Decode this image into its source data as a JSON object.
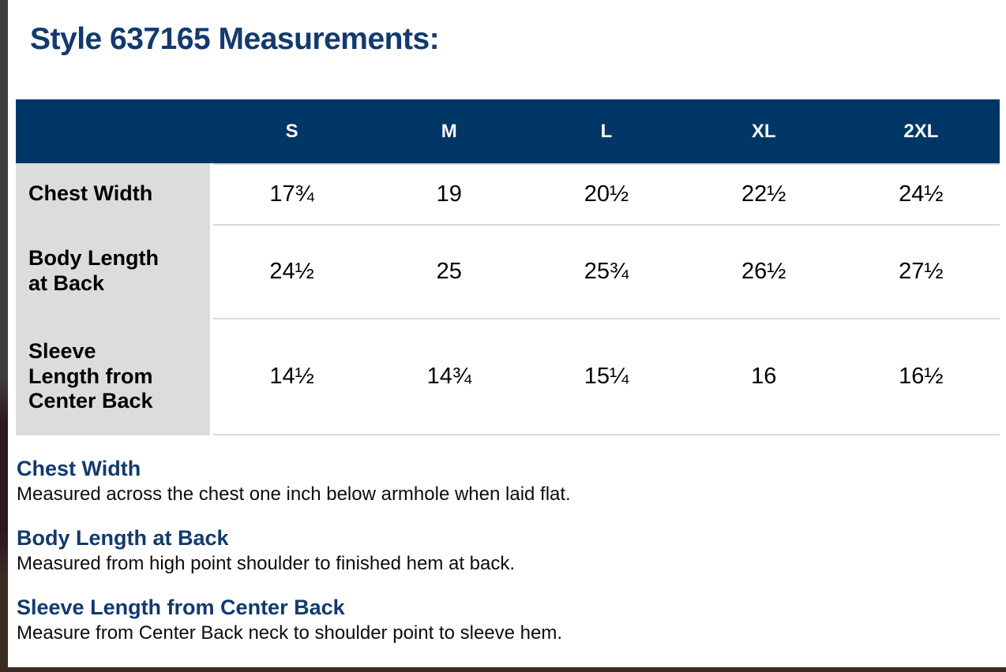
{
  "page": {
    "title": "Style 637165 Measurements:"
  },
  "table": {
    "sizes": [
      "S",
      "M",
      "L",
      "XL",
      "2XL"
    ],
    "rows": [
      {
        "label": "Chest Width",
        "values": [
          "17¾",
          "19",
          "20½",
          "22½",
          "24½"
        ]
      },
      {
        "label": "Body Length at Back",
        "values": [
          "24½",
          "25",
          "25¾",
          "26½",
          "27½"
        ]
      },
      {
        "label": "Sleeve Length from Center Back",
        "values": [
          "14½",
          "14¾",
          "15¼",
          "16",
          "16½"
        ]
      }
    ]
  },
  "definitions": [
    {
      "term": "Chest Width",
      "description": "Measured across the chest one inch below armhole when laid flat."
    },
    {
      "term": "Body Length at Back",
      "description": "Measured from high point shoulder to finished hem at back."
    },
    {
      "term": "Sleeve Length from Center Back",
      "description": "Measure from Center Back neck to shoulder point to sleeve hem."
    }
  ],
  "colors": {
    "header_bg": "#003666",
    "title_text": "#123a6d",
    "label_bg": "#dcdcdc",
    "row_divider": "#d9d9d9",
    "edge_top": "#3f3f42",
    "edge_mid": "#2e1620",
    "edge_bottom": "#3a2c23"
  }
}
